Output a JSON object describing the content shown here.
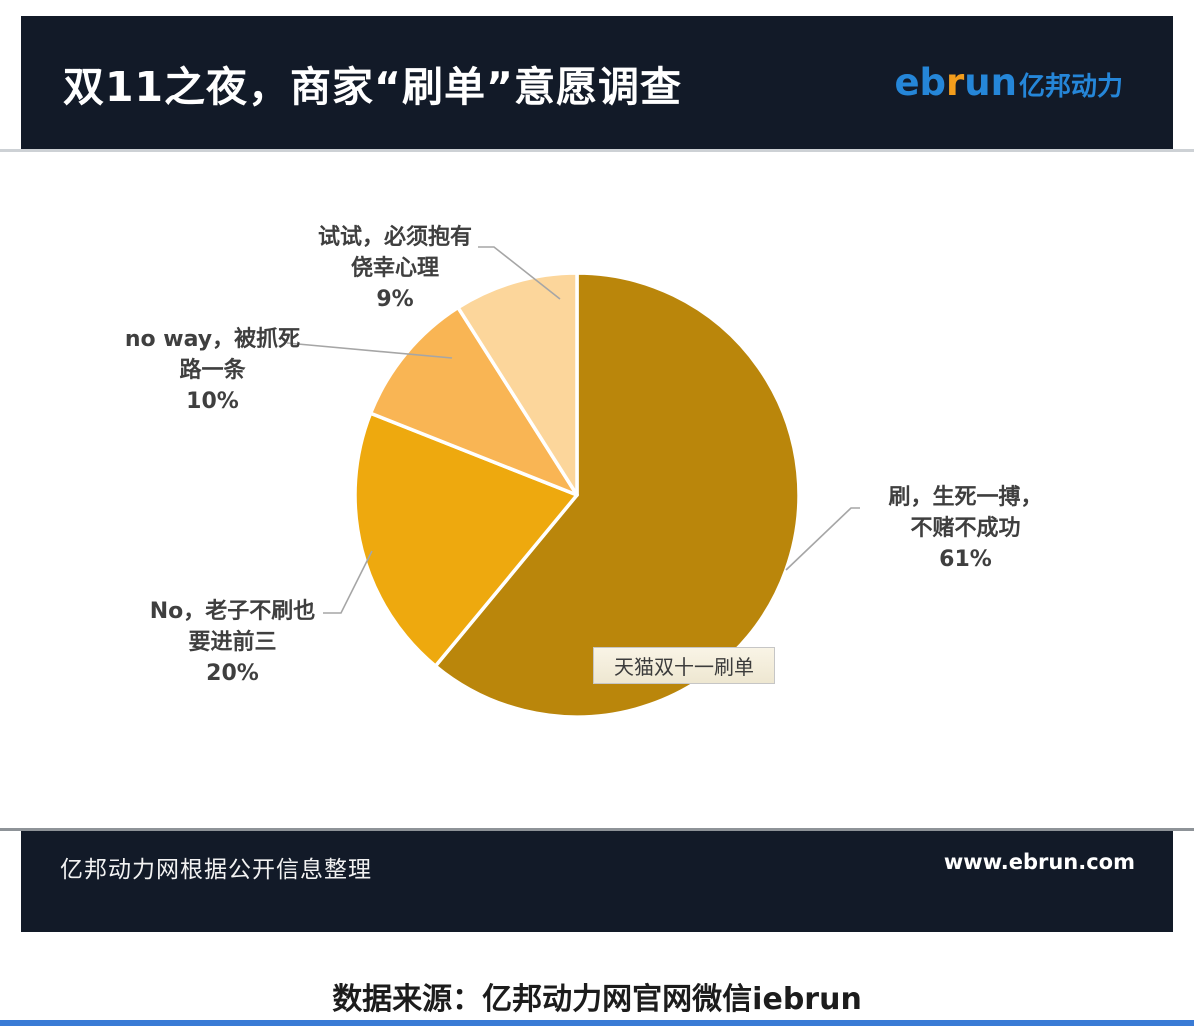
{
  "header": {
    "title": "双11之夜，商家“刷单”意愿调查",
    "logo": {
      "en_part1": "eb",
      "en_r": "r",
      "en_part2": "un",
      "cn": "亿邦动力"
    }
  },
  "chart_data": {
    "type": "pie",
    "title": "双11之夜，商家“刷单”意愿调查",
    "tooltip": "天猫双十一刷单",
    "start_angle_deg": 0,
    "direction": "clockwise",
    "legend_position": "none",
    "slices": [
      {
        "label": "刷，生死一搏，不赌不成功",
        "label_lines": [
          "刷，生死一搏，",
          "不赌不成功"
        ],
        "pct_label": "61%",
        "value": 61,
        "color": "#ba860b"
      },
      {
        "label": "No，老子不刷也要进前三",
        "label_lines": [
          "No，老子不刷也",
          "要进前三"
        ],
        "pct_label": "20%",
        "value": 20,
        "color": "#eea90e"
      },
      {
        "label": "no way，被抓死路一条",
        "label_lines": [
          "no way，被抓死",
          "路一条"
        ],
        "pct_label": "10%",
        "value": 10,
        "color": "#f9b554"
      },
      {
        "label": "试试，必须抱有侥幸心理",
        "label_lines": [
          "试试，必须抱有",
          "侥幸心理"
        ],
        "pct_label": "9%",
        "value": 9,
        "color": "#fcd69b"
      }
    ]
  },
  "footer": {
    "left": "亿邦动力网根据公开信息整理",
    "right": "www.ebrun.com"
  },
  "caption": "数据来源：亿邦动力网官网微信iebrun",
  "colors": {
    "header_bg": "#121a28",
    "logo_blue": "#2586d8",
    "logo_orange": "#f39d1c",
    "leader_line": "#a6a6a6",
    "bottom_bar_blue": "#3a7bd5"
  }
}
